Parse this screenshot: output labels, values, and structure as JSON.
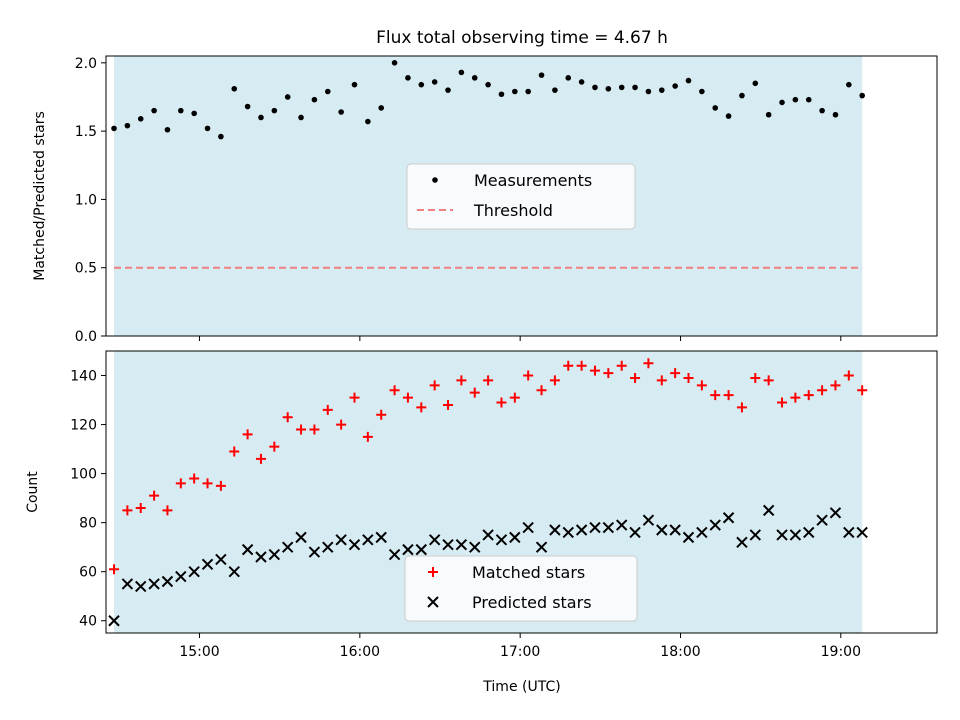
{
  "chart_data": {
    "title": "Flux total observing time = 4.67 h",
    "xlabel": "Time (UTC)",
    "x_ticks": [
      "15:00",
      "16:00",
      "17:00",
      "18:00",
      "19:00"
    ],
    "x_range": [
      "14:25",
      "19:36"
    ],
    "observing_window": [
      "14:28",
      "19:08"
    ],
    "colors": {
      "window": "#add8e6",
      "measurements": "#000000",
      "threshold": "#f08080",
      "matched": "#ff0000",
      "predicted": "#000000"
    },
    "charts": [
      {
        "type": "scatter",
        "ylabel": "Matched/Predicted stars",
        "ylim": [
          0,
          2.05
        ],
        "yticks": [
          "0.0",
          "0.5",
          "1.0",
          "1.5",
          "2.0"
        ],
        "threshold": 0.5,
        "legend_placement": "center",
        "series": [
          {
            "name": "Measurements",
            "marker": "dot",
            "values": [
              1.52,
              1.54,
              1.59,
              1.65,
              1.51,
              1.65,
              1.63,
              1.52,
              1.46,
              1.81,
              1.68,
              1.6,
              1.65,
              1.75,
              1.6,
              1.73,
              1.79,
              1.64,
              1.84,
              1.57,
              1.67,
              2.0,
              1.89,
              1.84,
              1.86,
              1.8,
              1.93,
              1.89,
              1.84,
              1.77,
              1.79,
              1.79,
              1.91,
              1.8,
              1.89,
              1.86,
              1.82,
              1.81,
              1.82,
              1.82,
              1.79,
              1.8,
              1.83,
              1.87,
              1.79,
              1.67,
              1.61,
              1.76,
              1.85,
              1.62,
              1.71,
              1.73,
              1.73,
              1.65,
              1.62,
              1.84,
              1.76
            ]
          },
          {
            "name": "Threshold",
            "marker": "dashed-line",
            "values": [
              0.5,
              0.5
            ]
          }
        ]
      },
      {
        "type": "scatter",
        "ylabel": "Count",
        "ylim": [
          35,
          150
        ],
        "yticks": [
          "40",
          "60",
          "80",
          "100",
          "120",
          "140"
        ],
        "legend_placement": "lower center",
        "series": [
          {
            "name": "Matched stars",
            "marker": "plus",
            "values": [
              61,
              85,
              86,
              91,
              85,
              96,
              98,
              96,
              95,
              109,
              116,
              106,
              111,
              123,
              118,
              118,
              126,
              120,
              131,
              115,
              124,
              134,
              131,
              127,
              136,
              128,
              138,
              133,
              138,
              129,
              131,
              140,
              134,
              138,
              144,
              144,
              142,
              141,
              144,
              139,
              145,
              138,
              141,
              139,
              136,
              132,
              132,
              127,
              139,
              138,
              129,
              131,
              132,
              134,
              136,
              140,
              134
            ]
          },
          {
            "name": "Predicted stars",
            "marker": "x",
            "values": [
              40,
              55,
              54,
              55,
              56,
              58,
              60,
              63,
              65,
              60,
              69,
              66,
              67,
              70,
              74,
              68,
              70,
              73,
              71,
              73,
              74,
              67,
              69,
              69,
              73,
              71,
              71,
              70,
              75,
              73,
              74,
              78,
              70,
              77,
              76,
              77,
              78,
              78,
              79,
              76,
              81,
              77,
              77,
              74,
              76,
              79,
              82,
              72,
              75,
              85,
              75,
              75,
              76,
              81,
              84,
              76,
              76
            ]
          }
        ]
      }
    ],
    "x_times": [
      "14:28",
      "14:33",
      "14:38",
      "14:43",
      "14:48",
      "14:53",
      "14:58",
      "15:03",
      "15:08",
      "15:13",
      "15:18",
      "15:23",
      "15:28",
      "15:33",
      "15:38",
      "15:43",
      "15:48",
      "15:53",
      "15:58",
      "16:03",
      "16:08",
      "16:13",
      "16:18",
      "16:23",
      "16:28",
      "16:33",
      "16:38",
      "16:43",
      "16:48",
      "16:53",
      "16:58",
      "17:03",
      "17:08",
      "17:13",
      "17:18",
      "17:23",
      "17:28",
      "17:33",
      "17:38",
      "17:43",
      "17:48",
      "17:53",
      "17:58",
      "18:03",
      "18:08",
      "18:13",
      "18:18",
      "18:23",
      "18:28",
      "18:33",
      "18:38",
      "18:43",
      "18:48",
      "18:53",
      "18:58",
      "19:03",
      "19:08"
    ]
  }
}
